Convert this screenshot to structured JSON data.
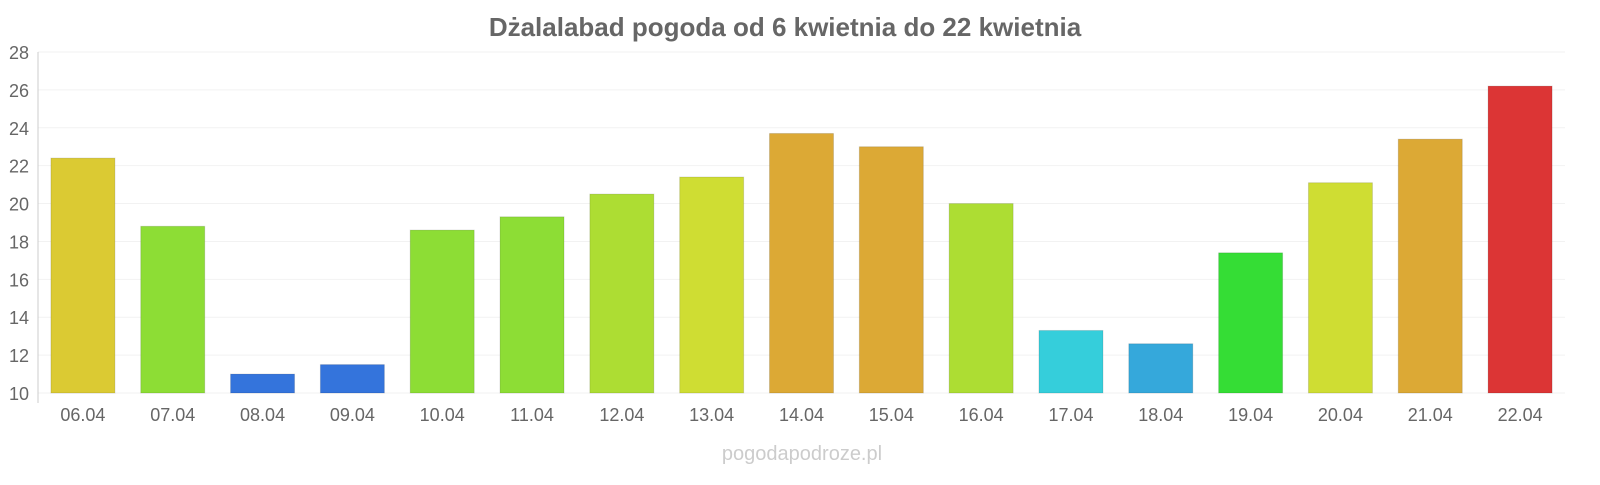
{
  "chart_data": {
    "type": "bar",
    "title": "Dżalalabad pogoda od 6 kwietnia do 22 kwietnia",
    "xlabel": "",
    "ylabel": "",
    "ylim": [
      10,
      28
    ],
    "yticks": [
      10,
      12,
      14,
      16,
      18,
      20,
      22,
      24,
      26,
      28
    ],
    "grid": true,
    "categories": [
      "06.04",
      "07.04",
      "08.04",
      "09.04",
      "10.04",
      "11.04",
      "12.04",
      "13.04",
      "14.04",
      "15.04",
      "16.04",
      "17.04",
      "18.04",
      "19.04",
      "20.04",
      "21.04",
      "22.04"
    ],
    "values": [
      22.4,
      18.8,
      11.0,
      11.5,
      18.6,
      19.3,
      20.5,
      21.4,
      23.7,
      23.0,
      20.0,
      13.3,
      12.6,
      17.4,
      21.1,
      23.4,
      26.2
    ],
    "colors": [
      "#dbca33",
      "#8ddd35",
      "#3474dc",
      "#3474dc",
      "#8ddd35",
      "#8ddd35",
      "#addd33",
      "#cfdd33",
      "#dca935",
      "#dca935",
      "#addd33",
      "#35cedb",
      "#35a8db",
      "#35dd35",
      "#cfdd33",
      "#dca935",
      "#dc3535"
    ]
  },
  "watermark": "pogodapodroze.pl"
}
